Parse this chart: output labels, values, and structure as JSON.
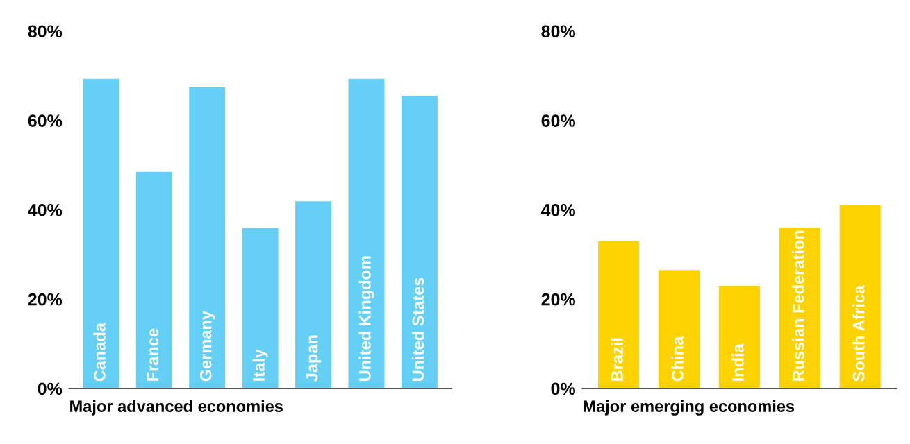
{
  "chart_data": [
    {
      "type": "bar",
      "xlabel": "Major advanced economies",
      "categories": [
        "Canada",
        "France",
        "Germany",
        "Italy",
        "Japan",
        "United Kingdom",
        "United States"
      ],
      "values": [
        69.3,
        48.5,
        67.4,
        35.9,
        41.9,
        69.3,
        65.5
      ],
      "color": "#66cff5",
      "ylim": [
        0,
        80
      ],
      "yticks": [
        {
          "value": 0,
          "label": "0%"
        },
        {
          "value": 20,
          "label": "20%"
        },
        {
          "value": 40,
          "label": "40%"
        },
        {
          "value": 60,
          "label": "60%"
        },
        {
          "value": 80,
          "label": "80%"
        }
      ],
      "grid": false,
      "legend": false
    },
    {
      "type": "bar",
      "xlabel": "Major emerging economies",
      "categories": [
        "Brazil",
        "China",
        "India",
        "Russian Federation",
        "South Africa"
      ],
      "values": [
        33,
        26.5,
        23,
        36,
        41
      ],
      "color": "#fcd200",
      "ylim": [
        0,
        80
      ],
      "yticks": [
        {
          "value": 0,
          "label": "0%"
        },
        {
          "value": 20,
          "label": "20%"
        },
        {
          "value": 40,
          "label": "40%"
        },
        {
          "value": 60,
          "label": "60%"
        },
        {
          "value": 80,
          "label": "80%"
        }
      ],
      "grid": false,
      "legend": false
    }
  ]
}
